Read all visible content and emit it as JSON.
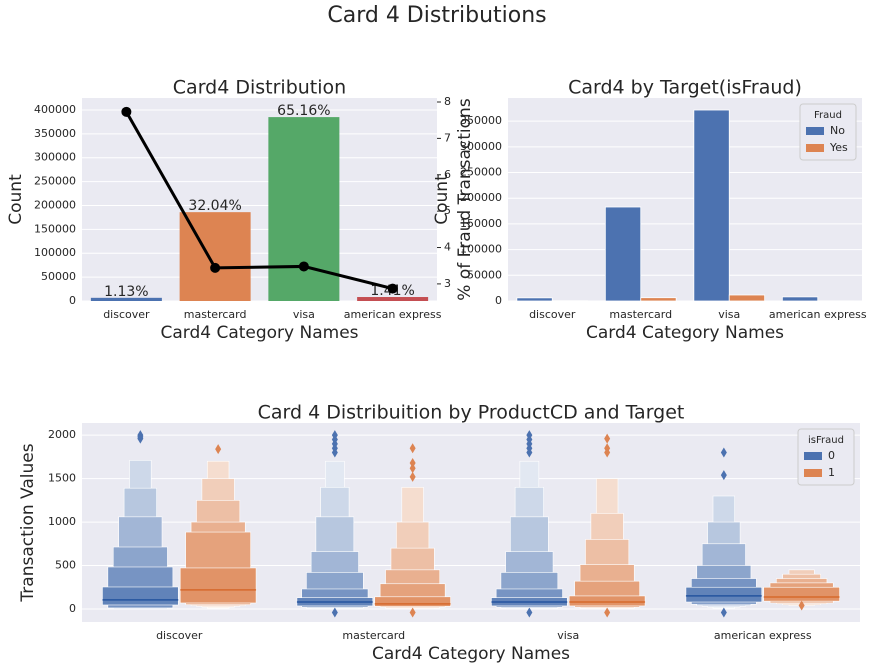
{
  "title": "Card 4 Distributions",
  "chart_data": [
    {
      "type": "bar",
      "title": "Card4 Distribution",
      "xlabel": "Card4 Category Names",
      "ylabel": "Count",
      "y2label": "% of Fraud Transactions",
      "categories": [
        "discover",
        "mastercard",
        "visa",
        "american express"
      ],
      "series": [
        {
          "colors": [
            "#4c72b0",
            "#dd8452",
            "#55a868",
            "#c44e52"
          ],
          "values": [
            6651,
            186000,
            385000,
            8328
          ],
          "value_labels": [
            "1.13%",
            "32.04%",
            "65.16%",
            "1.41%"
          ]
        },
        {
          "axis": "y2",
          "color": "#000000",
          "values": [
            7.73,
            3.44,
            3.48,
            2.87
          ]
        }
      ],
      "ylim": [
        0,
        425000
      ],
      "yticks": [
        0,
        50000,
        100000,
        150000,
        200000,
        250000,
        300000,
        350000,
        400000
      ],
      "y2lim": [
        2.53,
        8.11
      ],
      "y2ticks": [
        3,
        4,
        5,
        6,
        7,
        8
      ],
      "grid": true
    },
    {
      "type": "grouped_bar",
      "title": "Card4 by Target(isFraud)",
      "xlabel": "Card4 Category Names",
      "ylabel": "Count",
      "categories": [
        "discover",
        "mastercard",
        "visa",
        "american express"
      ],
      "series": [
        {
          "name": "No",
          "color": "#4c72b0",
          "values": [
            6100,
            182900,
            371600,
            8000
          ]
        },
        {
          "name": "Yes",
          "color": "#dd8452",
          "values": [
            500,
            6400,
            11700,
            240
          ]
        }
      ],
      "legend_title": "Fraud",
      "legend": "upper right",
      "ylim": [
        0,
        395000
      ],
      "yticks": [
        0,
        50000,
        100000,
        150000,
        200000,
        250000,
        300000,
        350000
      ],
      "grid": true
    },
    {
      "type": "boxen",
      "title": "Card 4 Distribuition by ProductCD and Target",
      "xlabel": "Card4 Category Names",
      "ylabel": "Transaction Values",
      "categories": [
        "discover",
        "mastercard",
        "visa",
        "american express"
      ],
      "legend_title": "isFraud",
      "legend": "upper right",
      "series": [
        {
          "name": "0",
          "color": "#4c72b0",
          "groups": [
            {
              "median": 104,
              "boxes": [
                [
                  46,
                  253
                ],
                [
                  12,
                  483
                ],
                [
                  5,
                  713
                ],
                [
                  3,
                  1060
                ],
                [
                  2,
                  1390
                ],
                [
                  1,
                  1710
                ]
              ],
              "outliers": [
                1960,
                1980,
                2000
              ]
            },
            {
              "median": 80,
              "boxes": [
                [
                  35,
                  130
                ],
                [
                  20,
                  230
                ],
                [
                  10,
                  420
                ],
                [
                  5,
                  660
                ],
                [
                  3,
                  1060
                ],
                [
                  2,
                  1400
                ],
                [
                  1,
                  1700
                ]
              ],
              "outliers": [
                -40,
                1800,
                1850,
                1900,
                1950,
                2000
              ]
            },
            {
              "median": 80,
              "boxes": [
                [
                  35,
                  130
                ],
                [
                  20,
                  230
                ],
                [
                  10,
                  420
                ],
                [
                  5,
                  660
                ],
                [
                  3,
                  1060
                ],
                [
                  2,
                  1400
                ],
                [
                  1,
                  1700
                ]
              ],
              "outliers": [
                -40,
                1800,
                1850,
                1900,
                1950,
                2000
              ]
            },
            {
              "median": 150,
              "boxes": [
                [
                  80,
                  250
                ],
                [
                  55,
                  350
                ],
                [
                  40,
                  500
                ],
                [
                  30,
                  750
                ],
                [
                  20,
                  1000
                ],
                [
                  10,
                  1300
                ]
              ],
              "outliers": [
                -40,
                1540,
                1800
              ]
            }
          ]
        },
        {
          "name": "1",
          "color": "#dd8452",
          "groups": [
            {
              "median": 219,
              "boxes": [
                [
                  69,
                  472
                ],
                [
                  50,
                  885
                ],
                [
                  40,
                  1000
                ],
                [
                  30,
                  1250
                ],
                [
                  20,
                  1500
                ],
                [
                  10,
                  1700
                ]
              ],
              "outliers": [
                1840
              ]
            },
            {
              "median": 58,
              "boxes": [
                [
                  30,
                  140
                ],
                [
                  20,
                  290
                ],
                [
                  10,
                  450
                ],
                [
                  5,
                  700
                ],
                [
                  3,
                  1000
                ],
                [
                  1,
                  1400
                ]
              ],
              "outliers": [
                -40,
                1520,
                1620,
                1680,
                1850
              ]
            },
            {
              "median": 80,
              "boxes": [
                [
                  35,
                  150
                ],
                [
                  20,
                  320
                ],
                [
                  10,
                  510
                ],
                [
                  5,
                  800
                ],
                [
                  3,
                  1100
                ],
                [
                  1,
                  1500
                ]
              ],
              "outliers": [
                -40,
                1800,
                1850,
                1960
              ]
            },
            {
              "median": 138,
              "boxes": [
                [
                  90,
                  250
                ],
                [
                  70,
                  300
                ],
                [
                  60,
                  350
                ],
                [
                  50,
                  400
                ],
                [
                  40,
                  450
                ]
              ],
              "outliers": [
                40
              ]
            }
          ]
        }
      ],
      "ylim": [
        -150,
        2140
      ],
      "yticks": [
        0,
        500,
        1000,
        1500,
        2000
      ],
      "grid": true
    }
  ]
}
